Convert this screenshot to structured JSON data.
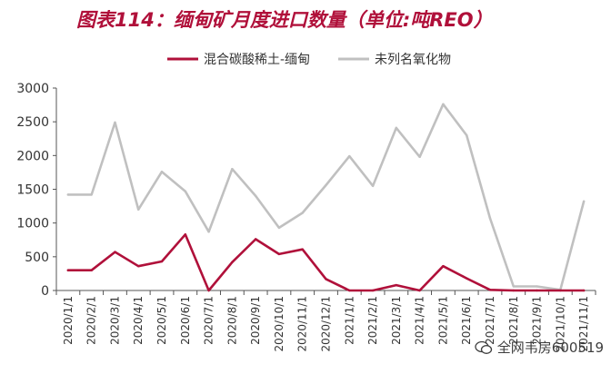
{
  "chart_data": {
    "type": "line",
    "title": "图表114：缅甸矿月度进口数量（单位:吨REO）",
    "xlabel": "",
    "ylabel": "",
    "ylim": [
      0,
      3000
    ],
    "yticks": [
      0,
      500,
      1000,
      1500,
      2000,
      2500,
      3000
    ],
    "grid": false,
    "legend_position": "top-center",
    "categories": [
      "2020/1/1",
      "2020/2/1",
      "2020/3/1",
      "2020/4/1",
      "2020/5/1",
      "2020/6/1",
      "2020/7/1",
      "2020/8/1",
      "2020/9/1",
      "2020/10/1",
      "2020/11/1",
      "2020/12/1",
      "2021/1/1",
      "2021/2/1",
      "2021/3/1",
      "2021/4/1",
      "2021/5/1",
      "2021/6/1",
      "2021/7/1",
      "2021/8/1",
      "2021/9/1",
      "2021/10/1",
      "2021/11/1"
    ],
    "series": [
      {
        "name": "混合碳酸稀土-缅甸",
        "color": "#b0103a",
        "values": [
          300,
          300,
          570,
          360,
          430,
          830,
          0,
          420,
          760,
          540,
          610,
          170,
          0,
          0,
          80,
          0,
          360,
          180,
          10,
          0,
          0,
          0,
          0
        ]
      },
      {
        "name": "未列名氧化物",
        "color": "#c0c0c0",
        "values": [
          1420,
          1420,
          2490,
          1200,
          1760,
          1470,
          870,
          1800,
          1400,
          930,
          1150,
          1560,
          1990,
          1550,
          2410,
          1980,
          2760,
          2300,
          1070,
          60,
          60,
          10,
          1320
        ]
      }
    ]
  },
  "watermark": "全网韦房600519",
  "watermark_icon": "wechat-icon"
}
